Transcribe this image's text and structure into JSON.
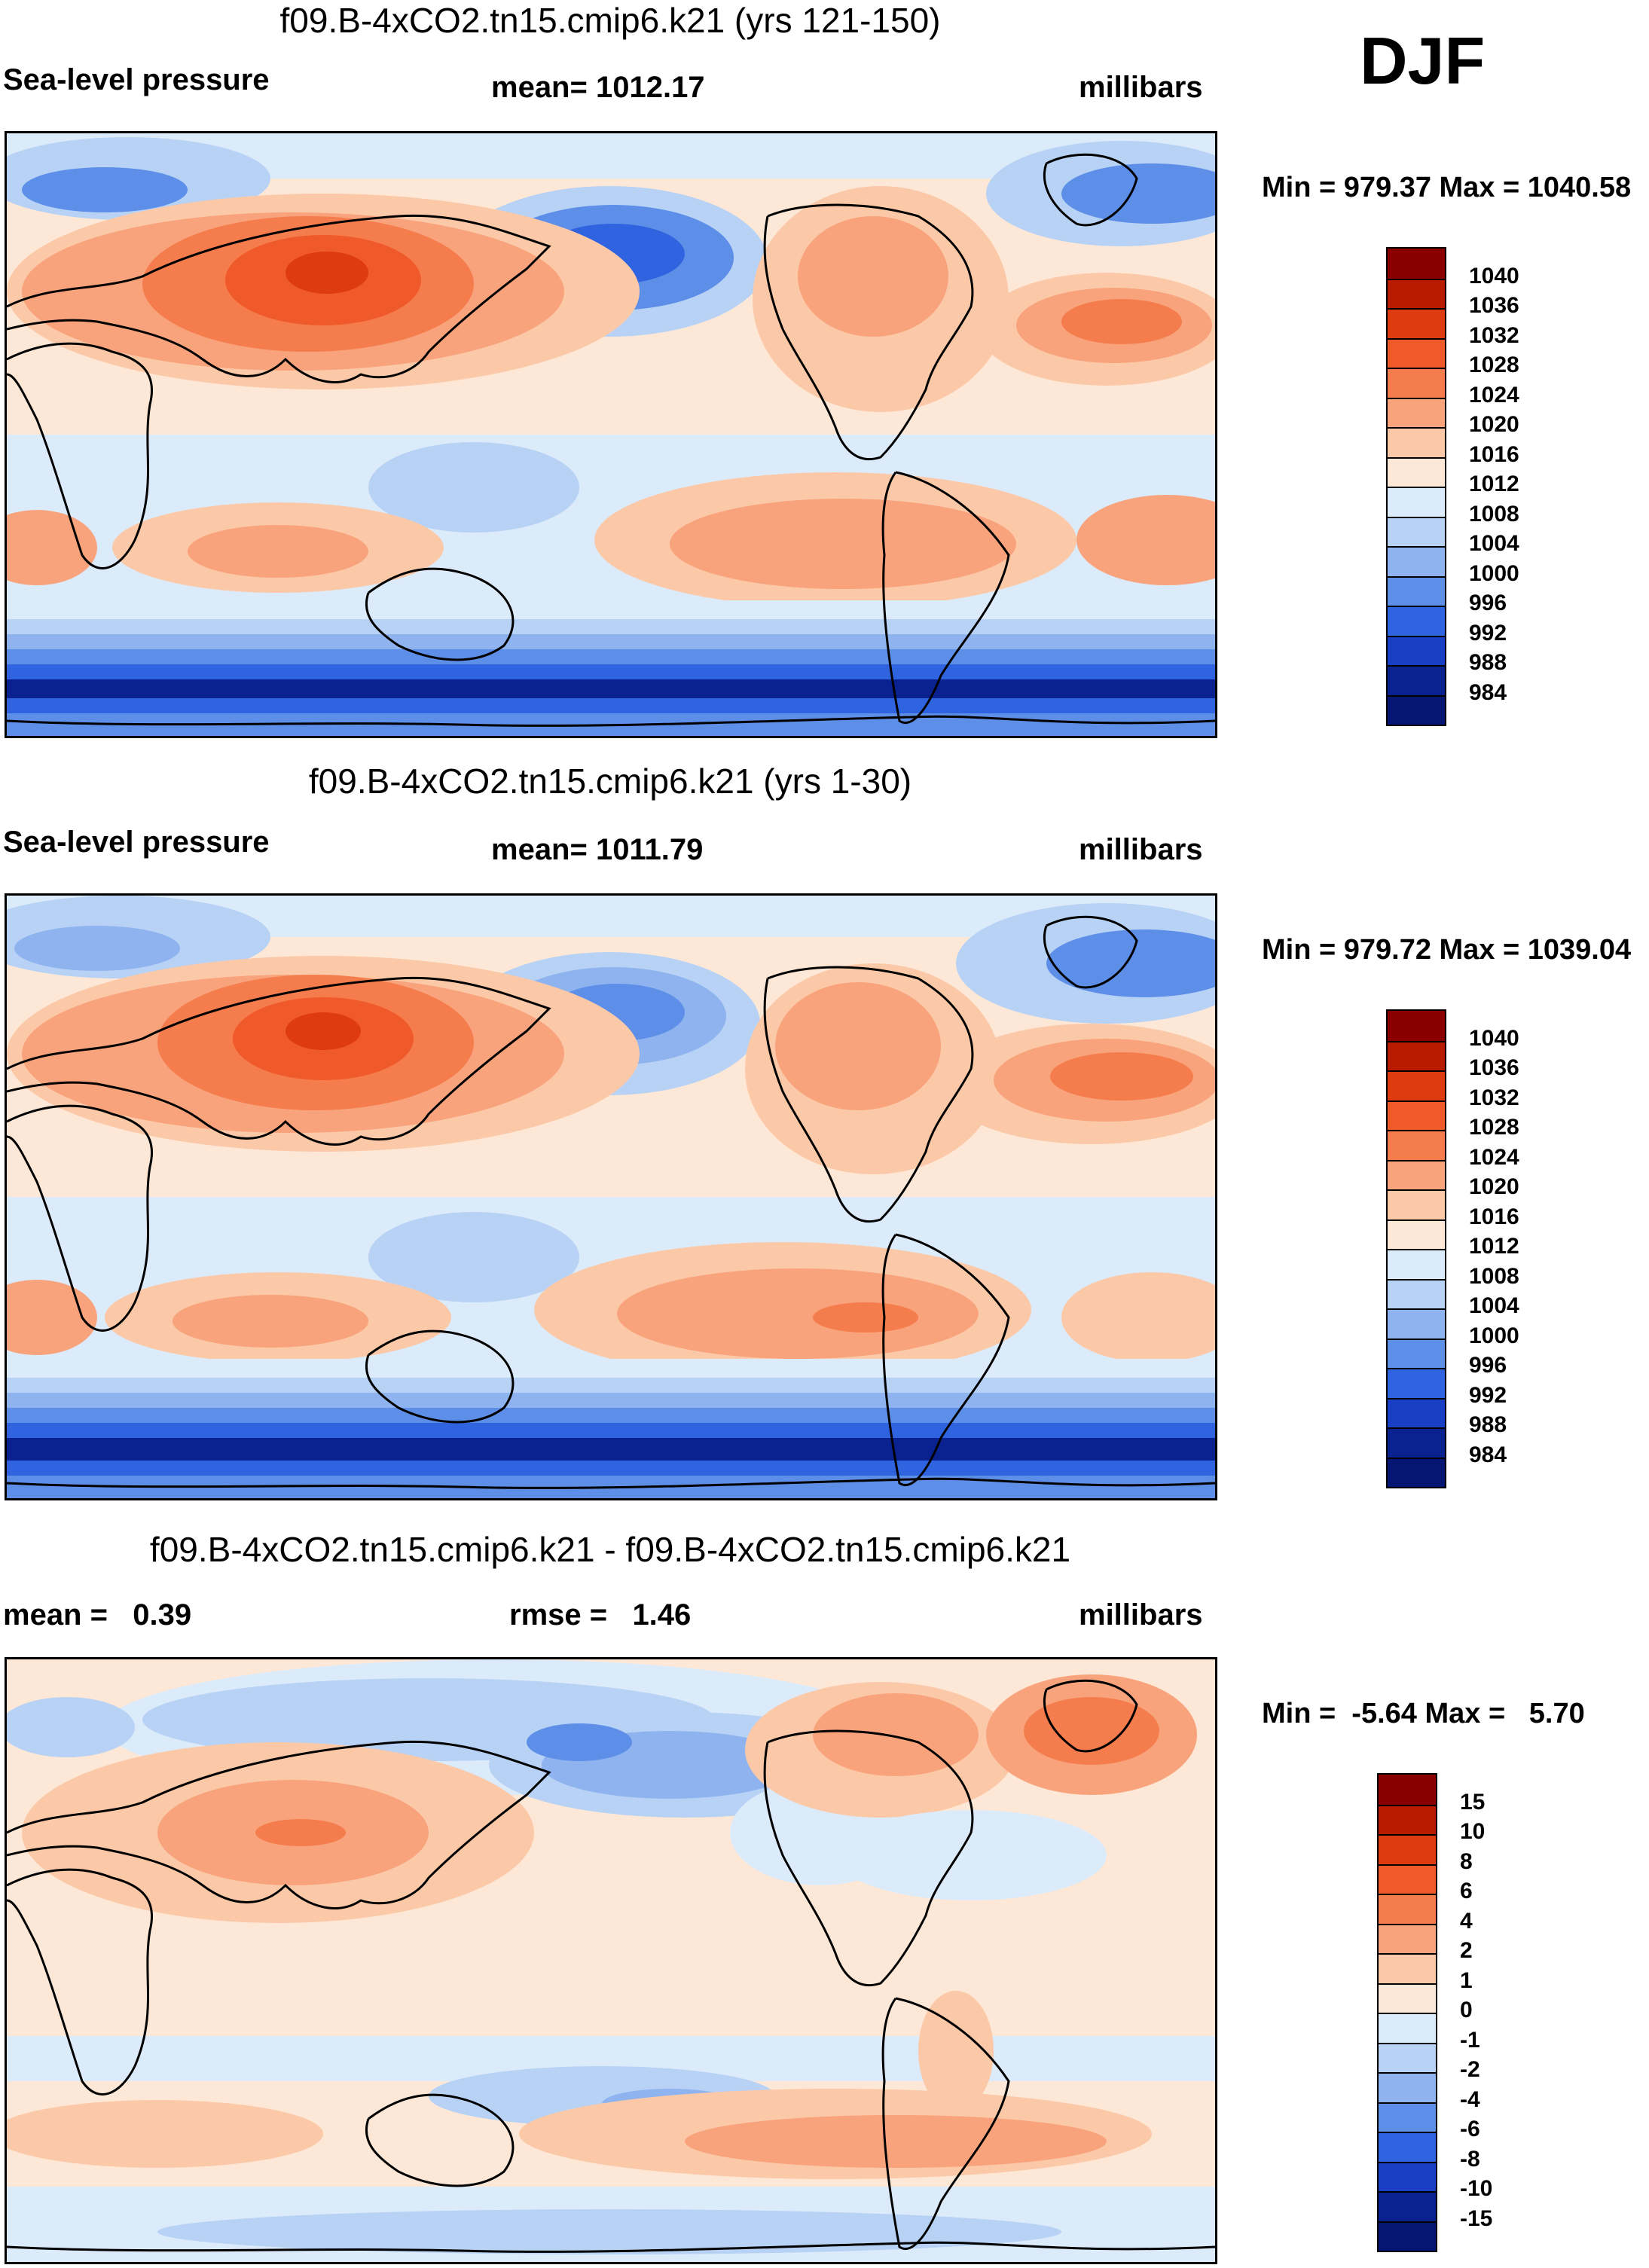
{
  "season": "DJF",
  "units_label": "millibars",
  "panels": [
    {
      "title": "f09.B-4xCO2.tn15.cmip6.k21 (yrs 121-150)",
      "left_label": "Sea-level pressure",
      "center_label": "mean= 1012.17",
      "right_label": "millibars",
      "minmax": "Min = 979.37 Max = 1040.58",
      "colorbar": {
        "labels": [
          "1040",
          "1036",
          "1032",
          "1028",
          "1024",
          "1020",
          "1016",
          "1012",
          "1008",
          "1004",
          "1000",
          "996",
          "992",
          "988",
          "984"
        ],
        "colors": [
          "#8a0000",
          "#b81b00",
          "#de3b10",
          "#f0592a",
          "#f57c4c",
          "#f8a37c",
          "#fcc9a8",
          "#fde8d8",
          "#dcebfa",
          "#b7d2f5",
          "#8eb3ee",
          "#5d8ee8",
          "#2f63e0",
          "#1940c4",
          "#0a2290",
          "#041671"
        ]
      }
    },
    {
      "title": "f09.B-4xCO2.tn15.cmip6.k21 (yrs 1-30)",
      "left_label": "Sea-level pressure",
      "center_label": "mean= 1011.79",
      "right_label": "millibars",
      "minmax": "Min = 979.72 Max = 1039.04",
      "colorbar": {
        "labels": [
          "1040",
          "1036",
          "1032",
          "1028",
          "1024",
          "1020",
          "1016",
          "1012",
          "1008",
          "1004",
          "1000",
          "996",
          "992",
          "988",
          "984"
        ],
        "colors": [
          "#8a0000",
          "#b81b00",
          "#de3b10",
          "#f0592a",
          "#f57c4c",
          "#f8a37c",
          "#fcc9a8",
          "#fde8d8",
          "#dcebfa",
          "#b7d2f5",
          "#8eb3ee",
          "#5d8ee8",
          "#2f63e0",
          "#1940c4",
          "#0a2290",
          "#041671"
        ]
      }
    },
    {
      "title": "f09.B-4xCO2.tn15.cmip6.k21 - f09.B-4xCO2.tn15.cmip6.k21",
      "left_label": "mean =   0.39",
      "center_label": "rmse =   1.46",
      "right_label": "millibars",
      "minmax": "Min =  -5.64 Max =   5.70",
      "colorbar": {
        "labels": [
          "15",
          "10",
          "8",
          "6",
          "4",
          "2",
          "1",
          "0",
          "-1",
          "-2",
          "-4",
          "-6",
          "-8",
          "-10",
          "-15"
        ],
        "colors": [
          "#8a0000",
          "#b81b00",
          "#de3b10",
          "#f0592a",
          "#f57c4c",
          "#f8a37c",
          "#fcc9a8",
          "#fde8d8",
          "#dcebfa",
          "#b7d2f5",
          "#8eb3ee",
          "#5d8ee8",
          "#2f63e0",
          "#1940c4",
          "#0a2290",
          "#041671"
        ]
      }
    }
  ]
}
